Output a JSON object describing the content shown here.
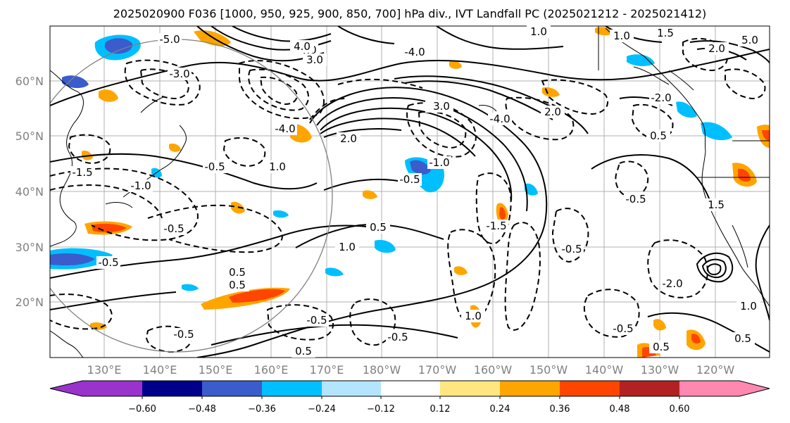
{
  "title": "2025020900 F036 [1000, 950, 925, 900, 850, 700] hPa div., IVT Landfall PC (2025021212 - 2025021412)",
  "map": {
    "lat_labels": [
      "60°N",
      "50°N",
      "40°N",
      "30°N",
      "20°N"
    ],
    "lon_labels": [
      "130°E",
      "140°E",
      "150°E",
      "160°E",
      "170°E",
      "180°W",
      "170°W",
      "160°W",
      "150°W",
      "140°W",
      "130°W",
      "120°W"
    ],
    "contour_labels": [
      "-5.0",
      "-4.0",
      "-3.0",
      "-2.0",
      "-1.5",
      "-1.0",
      "-0.5",
      "0.5",
      "1.0",
      "1.5",
      "2.0",
      "3.0",
      "4.0",
      "5.0"
    ],
    "coastline_color": "#000000",
    "grid_color": "#b0b0b0",
    "circle_color": "#808080"
  },
  "colorbar": {
    "ticks": [
      "−0.60",
      "−0.48",
      "−0.36",
      "−0.24",
      "−0.12",
      "0.12",
      "0.24",
      "0.36",
      "0.48",
      "0.60"
    ],
    "colors": [
      "#9933cc",
      "#00008b",
      "#3a5ccc",
      "#00bfff",
      "#b3e5ff",
      "#ffffff",
      "#ffe680",
      "#ffa500",
      "#ff4500",
      "#b22222",
      "#ff88b0"
    ],
    "extend": "both"
  }
}
